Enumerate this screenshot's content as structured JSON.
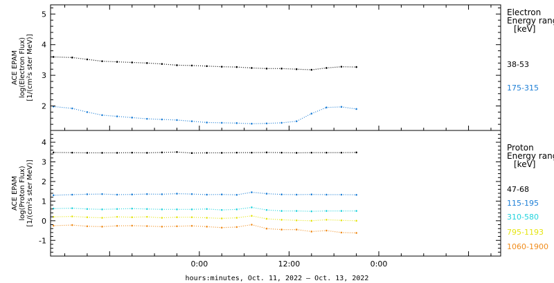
{
  "x_axis": {
    "title": "hours:minutes, Oct. 11, 2022 – Oct. 13, 2022",
    "range_hours": [
      -19.9,
      40.3
    ],
    "ticks": [
      {
        "hours": 0,
        "label": "0:00"
      },
      {
        "hours": 12,
        "label": "12:00"
      },
      {
        "hours": 24,
        "label": "0:00"
      }
    ],
    "minor_step_hours": 3
  },
  "panels": [
    {
      "id": "electron",
      "ylabel_lines": [
        "ACE EPAM",
        "log(Electron Flux)",
        "[1/(cm²s ster MeV)]"
      ],
      "ylim": [
        1.2,
        5.3
      ],
      "yticks": [
        2,
        3,
        4,
        5
      ],
      "minor_step": 0.2,
      "legend_title_lines": [
        "Electron",
        "Energy ranges",
        "[keV]"
      ]
    },
    {
      "id": "proton",
      "ylabel_lines": [
        "ACE EPAM",
        "log(Proton Flux)",
        "[1/(cm²s ster MeV)]"
      ],
      "ylim": [
        -1.8,
        4.6
      ],
      "yticks": [
        -1,
        0,
        1,
        2,
        3,
        4
      ],
      "minor_step": 0.2,
      "legend_title_lines": [
        "Proton",
        "Energy ranges",
        "[keV]"
      ]
    }
  ],
  "chart_data": [
    {
      "type": "scatter",
      "panel": "electron",
      "series": [
        {
          "name": "38-53",
          "color": "#000000",
          "x": [
            -19.5,
            -17,
            -15,
            -13,
            -11,
            -9,
            -7,
            -5,
            -3,
            -1,
            1,
            3,
            5,
            7,
            9,
            11,
            13,
            15,
            17,
            19,
            21
          ],
          "y": [
            3.6,
            3.58,
            3.52,
            3.46,
            3.44,
            3.42,
            3.4,
            3.37,
            3.33,
            3.32,
            3.3,
            3.28,
            3.27,
            3.24,
            3.22,
            3.22,
            3.2,
            3.18,
            3.24,
            3.28,
            3.27
          ]
        },
        {
          "name": "175-315",
          "color": "#1c7ed6",
          "x": [
            -19.5,
            -17,
            -15,
            -13,
            -11,
            -9,
            -7,
            -5,
            -3,
            -1,
            1,
            3,
            5,
            7,
            9,
            11,
            13,
            15,
            17,
            19,
            21
          ],
          "y": [
            1.98,
            1.92,
            1.8,
            1.7,
            1.66,
            1.62,
            1.58,
            1.56,
            1.54,
            1.5,
            1.46,
            1.45,
            1.44,
            1.42,
            1.43,
            1.45,
            1.5,
            1.75,
            1.95,
            1.97,
            1.9
          ]
        }
      ]
    },
    {
      "type": "scatter",
      "panel": "proton",
      "series": [
        {
          "name": "47-68",
          "color": "#000000",
          "x": [
            -19.5,
            -17,
            -15,
            -13,
            -11,
            -9,
            -7,
            -5,
            -3,
            -1,
            1,
            3,
            5,
            7,
            9,
            11,
            13,
            15,
            17,
            19,
            21
          ],
          "y": [
            3.48,
            3.47,
            3.46,
            3.46,
            3.46,
            3.47,
            3.46,
            3.48,
            3.5,
            3.45,
            3.46,
            3.46,
            3.47,
            3.47,
            3.48,
            3.47,
            3.46,
            3.47,
            3.47,
            3.47,
            3.48
          ]
        },
        {
          "name": "115-195",
          "color": "#1c7ed6",
          "x": [
            -19.5,
            -17,
            -15,
            -13,
            -11,
            -9,
            -7,
            -5,
            -3,
            -1,
            1,
            3,
            5,
            7,
            9,
            11,
            13,
            15,
            17,
            19,
            21
          ],
          "y": [
            1.3,
            1.33,
            1.35,
            1.36,
            1.33,
            1.34,
            1.36,
            1.35,
            1.38,
            1.36,
            1.33,
            1.34,
            1.32,
            1.45,
            1.38,
            1.34,
            1.33,
            1.34,
            1.33,
            1.33,
            1.32
          ]
        },
        {
          "name": "310-580",
          "color": "#22d3dd",
          "x": [
            -19.5,
            -17,
            -15,
            -13,
            -11,
            -9,
            -7,
            -5,
            -3,
            -1,
            1,
            3,
            5,
            7,
            9,
            11,
            13,
            15,
            17,
            19,
            21
          ],
          "y": [
            0.62,
            0.64,
            0.6,
            0.58,
            0.6,
            0.62,
            0.6,
            0.58,
            0.58,
            0.58,
            0.6,
            0.55,
            0.58,
            0.68,
            0.55,
            0.5,
            0.5,
            0.48,
            0.5,
            0.5,
            0.5
          ]
        },
        {
          "name": "795-1193",
          "color": "#e5e510",
          "x": [
            -19.5,
            -17,
            -15,
            -13,
            -11,
            -9,
            -7,
            -5,
            -3,
            -1,
            1,
            3,
            5,
            7,
            9,
            11,
            13,
            15,
            17,
            19,
            21
          ],
          "y": [
            0.2,
            0.22,
            0.18,
            0.15,
            0.2,
            0.18,
            0.2,
            0.15,
            0.18,
            0.18,
            0.15,
            0.12,
            0.15,
            0.25,
            0.1,
            0.05,
            0.02,
            0.0,
            0.05,
            0.02,
            0.0
          ]
        },
        {
          "name": "1060-1900",
          "color": "#f08c1c",
          "x": [
            -19.5,
            -17,
            -15,
            -13,
            -11,
            -9,
            -7,
            -5,
            -3,
            -1,
            1,
            3,
            5,
            7,
            9,
            11,
            13,
            15,
            17,
            19,
            21
          ],
          "y": [
            -0.25,
            -0.22,
            -0.28,
            -0.3,
            -0.26,
            -0.25,
            -0.27,
            -0.3,
            -0.28,
            -0.26,
            -0.3,
            -0.35,
            -0.32,
            -0.2,
            -0.4,
            -0.45,
            -0.45,
            -0.55,
            -0.5,
            -0.6,
            -0.62
          ]
        }
      ]
    }
  ]
}
